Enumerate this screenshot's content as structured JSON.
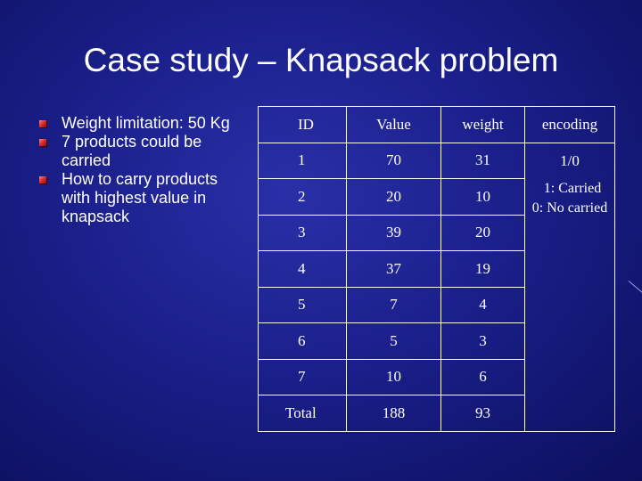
{
  "slide": {
    "title": "Case study – Knapsack problem"
  },
  "bullets": [
    "Weight limitation: 50 Kg",
    "7 products could be carried",
    "How to carry products with highest value in knapsack"
  ],
  "table": {
    "headers": [
      "ID",
      "Value",
      "weight",
      "encoding"
    ],
    "rows": [
      [
        "1",
        "70",
        "31"
      ],
      [
        "2",
        "20",
        "10"
      ],
      [
        "3",
        "39",
        "20"
      ],
      [
        "4",
        "37",
        "19"
      ],
      [
        "5",
        "7",
        "4"
      ],
      [
        "6",
        "5",
        "3"
      ],
      [
        "7",
        "10",
        "6"
      ],
      [
        "Total",
        "188",
        "93"
      ]
    ],
    "encoding_value": "1/0",
    "encoding_note": [
      "1: Carried",
      "0: No carried"
    ]
  }
}
